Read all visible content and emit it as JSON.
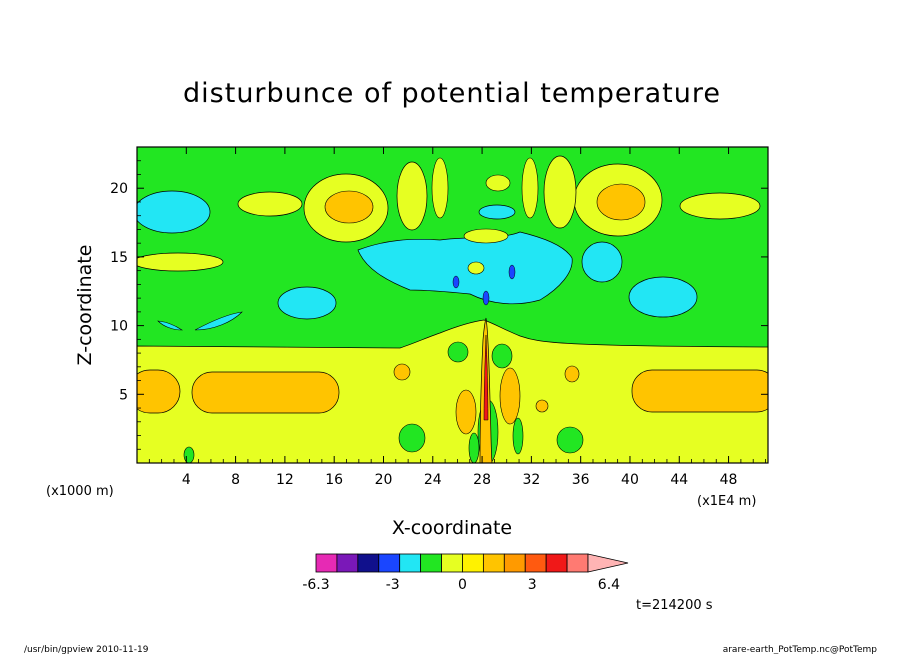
{
  "chart_data": {
    "type": "heatmap",
    "title": "disturbunce of potential temperature",
    "xlabel": "X-coordinate",
    "ylabel": "Z-coordinate",
    "x_unit_label": "(x1E4 m)",
    "y_unit_label": "(x1000 m)",
    "xlim": [
      0,
      51.2
    ],
    "ylim": [
      0,
      23
    ],
    "x_ticks": [
      4,
      8,
      12,
      16,
      20,
      24,
      28,
      32,
      36,
      40,
      44,
      48
    ],
    "y_ticks": [
      5,
      10,
      15,
      20
    ],
    "colorbar": {
      "levels": [
        -6.3,
        -5.4,
        -4.5,
        -3.6,
        -2.7,
        -1.8,
        -0.9,
        0,
        0.9,
        1.8,
        2.7,
        3.6,
        4.5,
        5.4,
        6.4
      ],
      "labels": [
        "-6.3",
        "-3",
        "0",
        "3",
        "6.4"
      ],
      "colors": [
        "#e62ab4",
        "#7a18b8",
        "#10108c",
        "#1a46ff",
        "#22e6f4",
        "#22e622",
        "#e6ff22",
        "#fff200",
        "#ffc400",
        "#ff9a00",
        "#ff5a10",
        "#f01818",
        "#ff7a72",
        "#ffb4b4"
      ]
    },
    "time_label": "t=214200 s"
  },
  "footer": {
    "left": "/usr/bin/gpview   2010-11-19",
    "right": "arare-earth_PotTemp.nc@PotTemp"
  }
}
